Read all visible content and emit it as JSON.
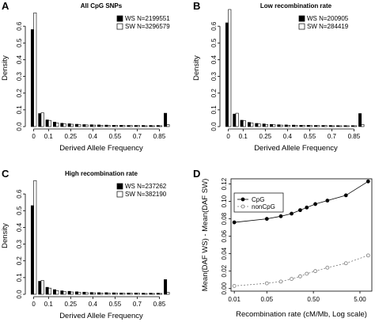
{
  "chart_data": [
    {
      "type": "bar",
      "panel_label": "A",
      "title": "All CpG SNPs",
      "xlabel": "Derived Allele Frequency",
      "ylabel": "Density",
      "ylim": [
        0,
        0.7
      ],
      "yticks": [
        "0.0",
        "0.1",
        "0.2",
        "0.3",
        "0.4",
        "0.5",
        "0.6"
      ],
      "xticks": [
        "0",
        "0.1",
        "0.25",
        "0.4",
        "0.55",
        "0.7",
        "0.85"
      ],
      "legend_position": "top-right",
      "legend": [
        "WS N=2199551",
        "SW N=3296579"
      ],
      "series": [
        {
          "name": "WS N=2199551",
          "color": "#000000",
          "values": [
            0.58,
            0.078,
            0.04,
            0.027,
            0.02,
            0.017,
            0.014,
            0.012,
            0.011,
            0.01,
            0.009,
            0.008,
            0.008,
            0.007,
            0.007,
            0.007,
            0.007,
            0.007,
            0.08
          ]
        },
        {
          "name": "SW N=3296579",
          "color": "#ffffff",
          "values": [
            0.68,
            0.083,
            0.037,
            0.022,
            0.017,
            0.014,
            0.012,
            0.01,
            0.009,
            0.008,
            0.007,
            0.007,
            0.006,
            0.006,
            0.006,
            0.005,
            0.005,
            0.005,
            0.012
          ]
        }
      ]
    },
    {
      "type": "bar",
      "panel_label": "B",
      "title": "Low recombination rate",
      "xlabel": "Derived Allele Frequency",
      "ylabel": "Density",
      "ylim": [
        0,
        0.7
      ],
      "yticks": [
        "0.0",
        "0.1",
        "0.2",
        "0.3",
        "0.4",
        "0.5",
        "0.6"
      ],
      "xticks": [
        "0",
        "0.1",
        "0.25",
        "0.4",
        "0.55",
        "0.7",
        "0.85"
      ],
      "legend_position": "top-right",
      "legend": [
        "WS N=200905",
        "SW N=284419"
      ],
      "series": [
        {
          "name": "WS N=200905",
          "color": "#000000",
          "values": [
            0.62,
            0.075,
            0.038,
            0.025,
            0.019,
            0.016,
            0.013,
            0.011,
            0.01,
            0.009,
            0.008,
            0.008,
            0.007,
            0.007,
            0.007,
            0.006,
            0.006,
            0.006,
            0.078
          ]
        },
        {
          "name": "SW N=284419",
          "color": "#ffffff",
          "values": [
            0.7,
            0.08,
            0.035,
            0.021,
            0.016,
            0.013,
            0.011,
            0.009,
            0.008,
            0.008,
            0.007,
            0.006,
            0.006,
            0.006,
            0.005,
            0.005,
            0.005,
            0.005,
            0.012
          ]
        }
      ]
    },
    {
      "type": "bar",
      "panel_label": "C",
      "title": "High recombination rate",
      "xlabel": "Derived Allele Frequency",
      "ylabel": "Density",
      "ylim": [
        0,
        0.7
      ],
      "yticks": [
        "0.0",
        "0.1",
        "0.2",
        "0.3",
        "0.4",
        "0.5",
        "0.6"
      ],
      "xticks": [
        "0",
        "0.1",
        "0.25",
        "0.4",
        "0.55",
        "0.7",
        "0.85"
      ],
      "legend_position": "top-right",
      "legend": [
        "WS N=237262",
        "SW N=382190"
      ],
      "series": [
        {
          "name": "WS N=237262",
          "color": "#000000",
          "values": [
            0.53,
            0.078,
            0.042,
            0.028,
            0.021,
            0.018,
            0.015,
            0.013,
            0.011,
            0.01,
            0.01,
            0.009,
            0.008,
            0.008,
            0.008,
            0.007,
            0.007,
            0.007,
            0.088
          ]
        },
        {
          "name": "SW N=382190",
          "color": "#ffffff",
          "values": [
            0.68,
            0.083,
            0.037,
            0.022,
            0.017,
            0.014,
            0.012,
            0.01,
            0.009,
            0.008,
            0.007,
            0.007,
            0.006,
            0.006,
            0.006,
            0.005,
            0.005,
            0.005,
            0.012
          ]
        }
      ]
    },
    {
      "type": "line",
      "panel_label": "D",
      "title": "",
      "xlabel": "Recombination rate (cM/Mb, Log scale)",
      "ylabel": "Mean(DAF WS) - Mean(DAF SW)",
      "x_scale": "log",
      "xlim": [
        0.0085,
        9.0
      ],
      "ylim": [
        -0.003,
        0.126
      ],
      "xticks": [
        0.01,
        0.05,
        0.5,
        5.0
      ],
      "xtick_labels": [
        "0.01",
        "0.05",
        "0.50",
        "5.00"
      ],
      "yticks": [
        0.0,
        0.02,
        0.04,
        0.06,
        0.08,
        0.1,
        0.12
      ],
      "ytick_labels": [
        "0.00",
        "0.02",
        "0.04",
        "0.06",
        "0.08",
        "0.10",
        "0.12"
      ],
      "legend_position": "top-left",
      "legend": [
        "CpG",
        "nonCpG"
      ],
      "series": [
        {
          "name": "CpG",
          "style": "solid",
          "marker": "filled-circle",
          "x": [
            0.01,
            0.05,
            0.1,
            0.17,
            0.26,
            0.36,
            0.55,
            1.0,
            2.5,
            7.5
          ],
          "y": [
            0.076,
            0.08,
            0.083,
            0.086,
            0.09,
            0.093,
            0.097,
            0.101,
            0.107,
            0.123
          ]
        },
        {
          "name": "nonCpG",
          "style": "dashed",
          "marker": "open-circle",
          "x": [
            0.01,
            0.05,
            0.1,
            0.17,
            0.26,
            0.36,
            0.55,
            1.0,
            2.5,
            7.5
          ],
          "y": [
            0.003,
            0.006,
            0.008,
            0.011,
            0.014,
            0.017,
            0.02,
            0.024,
            0.029,
            0.038
          ]
        }
      ]
    }
  ]
}
